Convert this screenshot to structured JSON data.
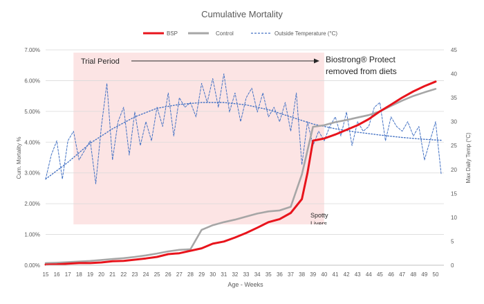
{
  "chart_data": {
    "type": "line",
    "title": "Cumulative Mortality",
    "xlabel": "Age - Weeks",
    "ylabel": "Cum. Mortality %",
    "y2label": "Max Daily Temp (°C)",
    "xlim": [
      15,
      50.5
    ],
    "x_ticks": [
      15,
      16,
      17,
      18,
      19,
      20,
      21,
      22,
      23,
      24,
      25,
      26,
      27,
      28,
      29,
      30,
      31,
      32,
      33,
      34,
      35,
      36,
      37,
      38,
      39,
      40,
      41,
      42,
      43,
      44,
      45,
      46,
      47,
      48,
      49,
      50
    ],
    "ylim": [
      0,
      7
    ],
    "y_ticks": [
      0,
      1,
      2,
      3,
      4,
      5,
      6,
      7
    ],
    "y_tick_labels": [
      "0.00%",
      "1.00%",
      "2.00%",
      "3.00%",
      "4.00%",
      "5.00%",
      "6.00%",
      "7.00%"
    ],
    "y2lim": [
      0,
      45
    ],
    "y2_ticks": [
      0,
      5,
      10,
      15,
      20,
      25,
      30,
      35,
      40,
      45
    ],
    "legend_position": "top",
    "grid": "horizontal",
    "series": [
      {
        "name": "BSP",
        "color": "#e8141c",
        "axis": "left",
        "style": "solid",
        "x": [
          15,
          16,
          17,
          18,
          19,
          20,
          21,
          22,
          23,
          24,
          25,
          26,
          27,
          28,
          29,
          30,
          31,
          32,
          33,
          34,
          35,
          36,
          37,
          38,
          38.5,
          39,
          40,
          41,
          42,
          43,
          44,
          45,
          46,
          47,
          48,
          49,
          50
        ],
        "values": [
          0.02,
          0.03,
          0.05,
          0.07,
          0.07,
          0.09,
          0.13,
          0.14,
          0.18,
          0.22,
          0.27,
          0.36,
          0.39,
          0.47,
          0.55,
          0.7,
          0.77,
          0.9,
          1.05,
          1.22,
          1.4,
          1.5,
          1.7,
          2.15,
          3.0,
          4.05,
          4.12,
          4.25,
          4.4,
          4.55,
          4.75,
          5.0,
          5.22,
          5.45,
          5.65,
          5.82,
          5.97
        ]
      },
      {
        "name": "Control",
        "color": "#a6a6a6",
        "axis": "left",
        "style": "solid",
        "x": [
          15,
          16,
          17,
          18,
          19,
          20,
          21,
          22,
          23,
          24,
          25,
          26,
          27,
          28,
          29,
          30,
          31,
          32,
          33,
          34,
          35,
          36,
          37,
          38,
          39,
          40,
          41,
          42,
          43,
          44,
          45,
          46,
          47,
          48,
          49,
          50
        ],
        "values": [
          0.07,
          0.08,
          0.1,
          0.12,
          0.14,
          0.17,
          0.2,
          0.23,
          0.27,
          0.32,
          0.38,
          0.45,
          0.5,
          0.52,
          1.15,
          1.3,
          1.4,
          1.48,
          1.58,
          1.68,
          1.75,
          1.78,
          1.9,
          2.95,
          4.5,
          4.55,
          4.65,
          4.72,
          4.8,
          4.88,
          5.0,
          5.18,
          5.35,
          5.5,
          5.62,
          5.73
        ]
      },
      {
        "name": "Outside Temperature (°C)",
        "color": "#4472c4",
        "axis": "right",
        "style": "dashed",
        "x": [
          15,
          15.5,
          16,
          16.5,
          17,
          17.5,
          18,
          18.5,
          19,
          19.5,
          20,
          20.5,
          21,
          21.5,
          22,
          22.5,
          23,
          23.5,
          24,
          24.5,
          25,
          25.5,
          26,
          26.5,
          27,
          27.5,
          28,
          28.5,
          29,
          29.5,
          30,
          30.5,
          31,
          31.5,
          32,
          32.5,
          33,
          33.5,
          34,
          34.5,
          35,
          35.5,
          36,
          36.5,
          37,
          37.5,
          38,
          38.5,
          39,
          39.5,
          40,
          40.5,
          41,
          41.5,
          42,
          42.5,
          43,
          43.5,
          44,
          44.5,
          45,
          45.5,
          46,
          46.5,
          47,
          47.5,
          48,
          48.5,
          49,
          49.5,
          50,
          50.5
        ],
        "values": [
          18,
          23,
          26,
          18,
          26,
          28,
          22,
          24,
          26,
          17,
          29,
          38,
          22,
          30,
          33,
          23,
          32,
          25,
          30,
          26,
          33,
          29,
          36,
          27,
          35,
          33,
          34,
          31,
          38,
          34,
          39,
          33,
          40,
          32,
          36,
          30,
          35,
          37,
          32,
          36,
          31,
          33,
          30,
          34,
          28,
          36,
          21,
          30,
          25,
          28,
          26,
          29,
          31,
          27,
          32,
          25,
          30,
          28,
          29,
          33,
          34,
          26,
          31,
          29,
          28,
          30,
          27,
          29,
          22,
          26,
          30,
          19
        ]
      },
      {
        "name": "Outside Temperature trend",
        "color": "#4472c4",
        "axis": "right",
        "style": "dotted",
        "x": [
          15,
          17,
          19,
          21,
          23,
          25,
          27,
          29,
          31,
          33,
          35,
          37,
          39,
          41,
          43,
          45,
          47,
          49,
          50.5
        ],
        "values": [
          18,
          21.5,
          25.5,
          28.5,
          31,
          32.8,
          33.6,
          34,
          34,
          33.5,
          32.5,
          31,
          29.5,
          28.5,
          27.8,
          27.2,
          26.7,
          26.3,
          26.1
        ]
      }
    ],
    "annotations": {
      "trial_period": "Trial Period",
      "trial_range": [
        17.5,
        40
      ],
      "removed_text_line1": "Biostrong® Protect",
      "removed_text_line2": "removed from diets",
      "spotty_line1": "Spotty",
      "spotty_line2": "Livers"
    },
    "colors": {
      "trial_shade": "#fce4e4",
      "grid": "#d9d9d9",
      "axis_text": "#595959"
    }
  }
}
